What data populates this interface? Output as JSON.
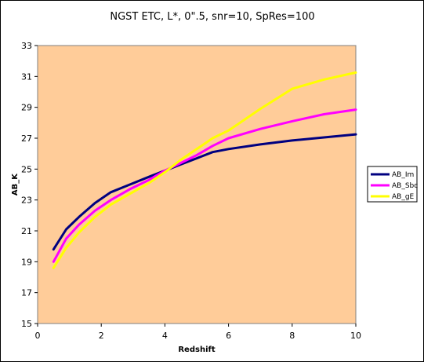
{
  "chart_data": {
    "type": "line",
    "title": "NGST ETC, L*, 0\".5, snr=10, SpRes=100",
    "xlabel": "Redshift",
    "ylabel": "AB_K",
    "xlim": [
      0,
      10
    ],
    "ylim": [
      15,
      33
    ],
    "xticks": [
      0,
      2,
      4,
      6,
      8,
      10
    ],
    "yticks": [
      15,
      17,
      19,
      21,
      23,
      25,
      27,
      29,
      31,
      33
    ],
    "grid": false,
    "plot_background": "#FFCC99",
    "legend_position": "right",
    "series": [
      {
        "name": "AB_Im",
        "color": "#000080",
        "x": [
          0.5,
          0.9,
          1.3,
          1.8,
          2.3,
          2.9,
          3.5,
          4.0,
          4.5,
          5.0,
          5.5,
          6.0,
          7.0,
          8.0,
          9.0,
          10.0
        ],
        "y": [
          19.8,
          21.1,
          21.9,
          22.8,
          23.5,
          24.0,
          24.5,
          24.9,
          25.3,
          25.7,
          26.1,
          26.3,
          26.6,
          26.85,
          27.05,
          27.25
        ]
      },
      {
        "name": "AB_Sbc",
        "color": "#FF00FF",
        "x": [
          0.5,
          0.9,
          1.3,
          1.8,
          2.3,
          2.9,
          3.5,
          4.0,
          4.5,
          5.0,
          5.5,
          6.0,
          7.0,
          8.0,
          9.0,
          10.0
        ],
        "y": [
          19.0,
          20.5,
          21.4,
          22.3,
          23.0,
          23.7,
          24.3,
          24.9,
          25.4,
          25.9,
          26.5,
          27.0,
          27.6,
          28.1,
          28.55,
          28.85
        ]
      },
      {
        "name": "AB_gE",
        "color": "#FFFF00",
        "x": [
          0.5,
          0.9,
          1.3,
          1.8,
          2.3,
          2.9,
          3.5,
          4.0,
          4.5,
          5.0,
          5.5,
          6.0,
          7.0,
          8.0,
          9.0,
          10.0
        ],
        "y": [
          18.6,
          19.9,
          20.9,
          21.9,
          22.7,
          23.4,
          24.1,
          24.8,
          25.6,
          26.3,
          27.0,
          27.5,
          28.9,
          30.2,
          30.8,
          31.25
        ]
      }
    ]
  }
}
